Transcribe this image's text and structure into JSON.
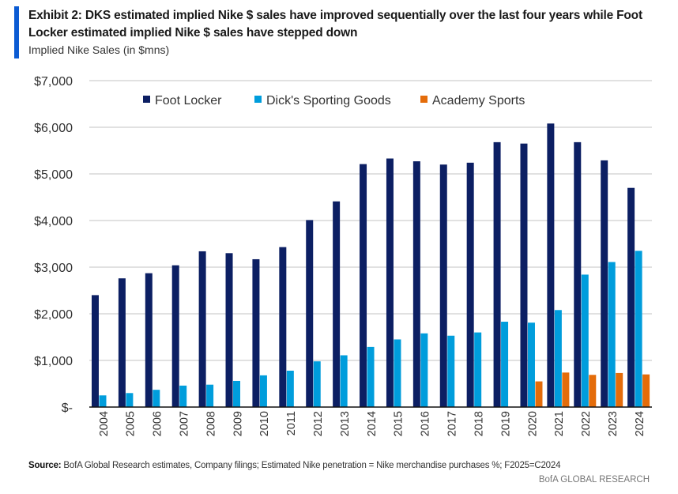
{
  "title": "Exhibit 2: DKS estimated implied Nike $ sales have improved sequentially over the last four years while Foot Locker estimated implied Nike $ sales have stepped down",
  "subtitle": "Implied Nike Sales (in $mns)",
  "source_label": "Source:",
  "source_text": "BofA Global Research estimates, Company filings; Estimated Nike penetration = Nike merchandise purchases %; F2025=C2024",
  "brand": "BofA GLOBAL RESEARCH",
  "accent_color": "#0b5bd3",
  "chart_data": {
    "type": "bar",
    "title": "Implied Nike Sales (in $mns)",
    "xlabel": "",
    "ylabel": "",
    "ylim": [
      0,
      7000
    ],
    "yticks": [
      0,
      1000,
      2000,
      3000,
      4000,
      5000,
      6000,
      7000
    ],
    "ytick_labels": [
      "$-",
      "$1,000",
      "$2,000",
      "$3,000",
      "$4,000",
      "$5,000",
      "$6,000",
      "$7,000"
    ],
    "grid": true,
    "legend_position": "top",
    "categories": [
      "2004",
      "2005",
      "2006",
      "2007",
      "2008",
      "2009",
      "2010",
      "2011",
      "2012",
      "2013",
      "2014",
      "2015",
      "2016",
      "2017",
      "2018",
      "2019",
      "2020",
      "2021",
      "2022",
      "2023",
      "2024"
    ],
    "series": [
      {
        "name": "Foot Locker",
        "color": "#0c1f63",
        "values": [
          2400,
          2760,
          2870,
          3040,
          3340,
          3300,
          3170,
          3430,
          4010,
          4410,
          5210,
          5330,
          5270,
          5200,
          5240,
          5680,
          5650,
          6080,
          5680,
          5290,
          4700
        ]
      },
      {
        "name": "Dick's Sporting Goods",
        "color": "#009ddc",
        "values": [
          250,
          300,
          370,
          460,
          480,
          560,
          680,
          780,
          980,
          1110,
          1290,
          1450,
          1580,
          1530,
          1600,
          1830,
          1810,
          2080,
          2840,
          3110,
          3350
        ]
      },
      {
        "name": "Academy Sports",
        "color": "#e46c0a",
        "values": [
          null,
          null,
          null,
          null,
          null,
          null,
          null,
          null,
          null,
          null,
          null,
          null,
          null,
          null,
          null,
          null,
          550,
          740,
          690,
          730,
          700
        ]
      }
    ]
  }
}
